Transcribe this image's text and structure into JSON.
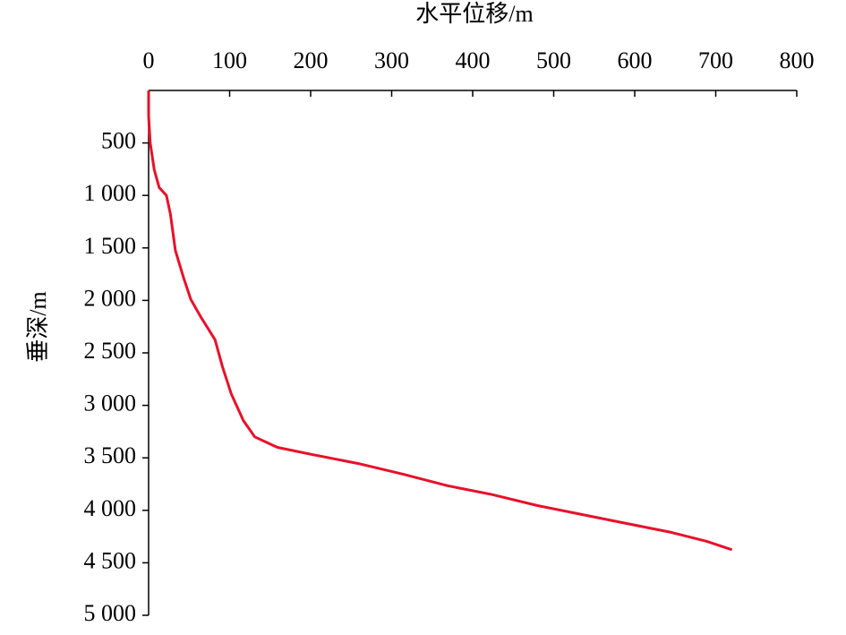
{
  "chart_data": {
    "type": "line",
    "x_label": "水平位移/m",
    "y_label": "垂深/m",
    "x": [
      0,
      0,
      2,
      7,
      13,
      22,
      27,
      33,
      43,
      52,
      65,
      82,
      91,
      102,
      117,
      131,
      159,
      203,
      259,
      314,
      369,
      424,
      480,
      535,
      590,
      645,
      689,
      720
    ],
    "series": [
      {
        "color": "#e8102a",
        "values": [
          0,
          245,
          500,
          755,
          925,
          1000,
          1180,
          1525,
          1780,
          1990,
          2165,
          2375,
          2630,
          2890,
          3145,
          3300,
          3400,
          3470,
          3555,
          3655,
          3765,
          3850,
          3955,
          4040,
          4125,
          4210,
          4295,
          4375
        ]
      }
    ],
    "xlim": [
      0,
      800
    ],
    "xticks": [
      0,
      100,
      200,
      300,
      400,
      500,
      600,
      700,
      800
    ],
    "ylim": [
      0,
      5000
    ],
    "y_inverted": true,
    "yticks": [
      500,
      {
        "value": 1000,
        "label": "1 000"
      },
      {
        "value": 1500,
        "label": "1 500"
      },
      {
        "value": 2000,
        "label": "2 000"
      },
      {
        "value": 2500,
        "label": "2 500"
      },
      {
        "value": 3000,
        "label": "3 000"
      },
      {
        "value": 3500,
        "label": "3 500"
      },
      {
        "value": 4000,
        "label": "4 000"
      },
      {
        "value": 4500,
        "label": "4 500"
      },
      {
        "value": 5000,
        "label": "5 000"
      }
    ],
    "grid": false
  }
}
